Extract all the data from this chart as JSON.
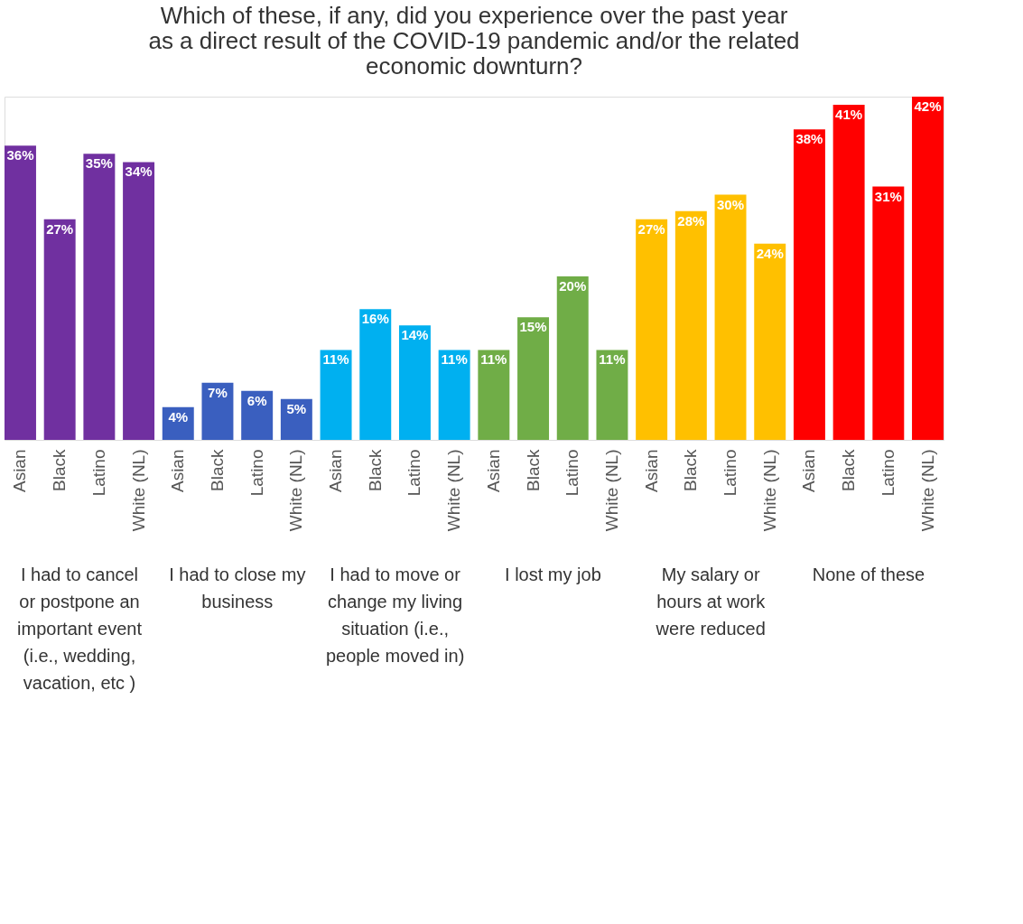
{
  "chart_data": {
    "type": "bar",
    "title": "Which of these, if any, did you experience over the past year as a direct result of the COVID-19 pandemic and/or the related economic downturn?",
    "categories": [
      "Asian",
      "Black",
      "Latino",
      "White (NL)",
      "Asian",
      "Black",
      "Latino",
      "White (NL)",
      "Asian",
      "Black",
      "Latino",
      "White (NL)",
      "Asian",
      "Black",
      "Latino",
      "White (NL)",
      "Asian",
      "Black",
      "Latino",
      "White (NL)",
      "Asian",
      "Black",
      "Latino",
      "White (NL)"
    ],
    "values": [
      36,
      27,
      35,
      34,
      4,
      7,
      6,
      5,
      11,
      16,
      14,
      11,
      11,
      15,
      20,
      11,
      27,
      28,
      30,
      24,
      38,
      41,
      31,
      42
    ],
    "value_labels": [
      "36%",
      "27%",
      "35%",
      "34%",
      "4%",
      "7%",
      "6%",
      "5%",
      "11%",
      "16%",
      "14%",
      "11%",
      "11%",
      "15%",
      "20%",
      "11%",
      "27%",
      "28%",
      "30%",
      "24%",
      "38%",
      "41%",
      "31%",
      "42%"
    ],
    "colors": [
      "#7030a0",
      "#7030a0",
      "#7030a0",
      "#7030a0",
      "#3a5fbf",
      "#3a5fbf",
      "#3a5fbf",
      "#3a5fbf",
      "#00b0f0",
      "#00b0f0",
      "#00b0f0",
      "#00b0f0",
      "#70ad47",
      "#70ad47",
      "#70ad47",
      "#70ad47",
      "#ffc000",
      "#ffc000",
      "#ffc000",
      "#ffc000",
      "#ff0000",
      "#ff0000",
      "#ff0000",
      "#ff0000"
    ],
    "annotations": [
      "I had to cancel or postpone an important event (i.e., wedding, vacation, etc )",
      "I had to close my business",
      "I had to move or change my living situation (i.e., people moved in)",
      "I lost my job",
      "My salary or hours at work were reduced",
      "None of these"
    ],
    "grid": false
  }
}
